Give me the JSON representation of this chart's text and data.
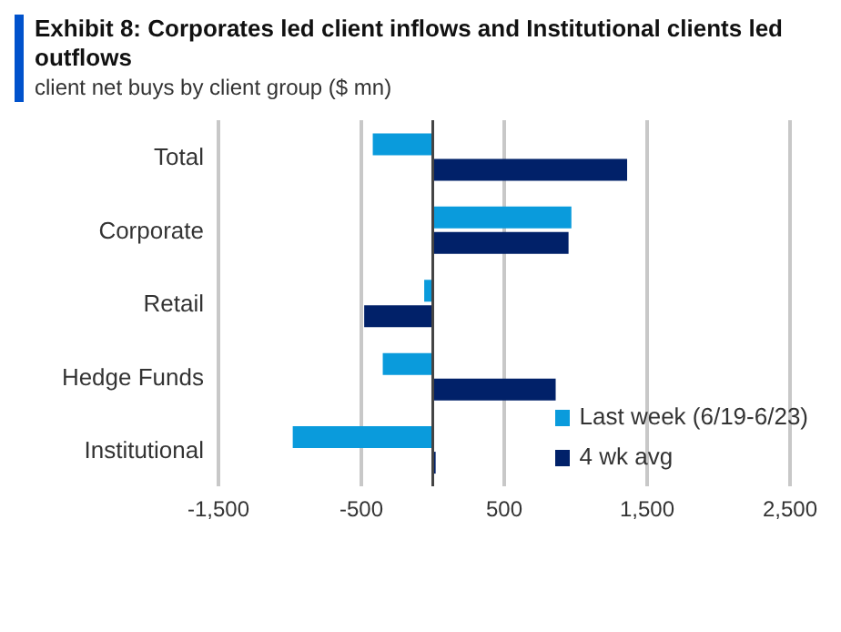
{
  "chart_data": {
    "type": "bar",
    "orientation": "horizontal",
    "title": "Exhibit 8: Corporates led client inflows and Institutional clients led outflows",
    "subtitle": "client net buys by client group ($ mn)",
    "categories": [
      "Total",
      "Corporate",
      "Retail",
      "Hedge Funds",
      "Institutional"
    ],
    "series": [
      {
        "name": "Last week (6/19-6/23)",
        "color": "#0a9bdc",
        "values": [
          -420,
          970,
          -60,
          -350,
          -980
        ]
      },
      {
        "name": "4 wk avg",
        "color": "#012169",
        "values": [
          1360,
          950,
          -480,
          860,
          20
        ]
      }
    ],
    "xlim": [
      -1500,
      2500
    ],
    "xticks": [
      {
        "value": -1500,
        "label": "-1,500"
      },
      -500,
      500,
      {
        "value": 1500,
        "label": "1,500"
      },
      {
        "value": 2500,
        "label": "2,500"
      }
    ],
    "grid": "x",
    "legend": "bottom right"
  }
}
